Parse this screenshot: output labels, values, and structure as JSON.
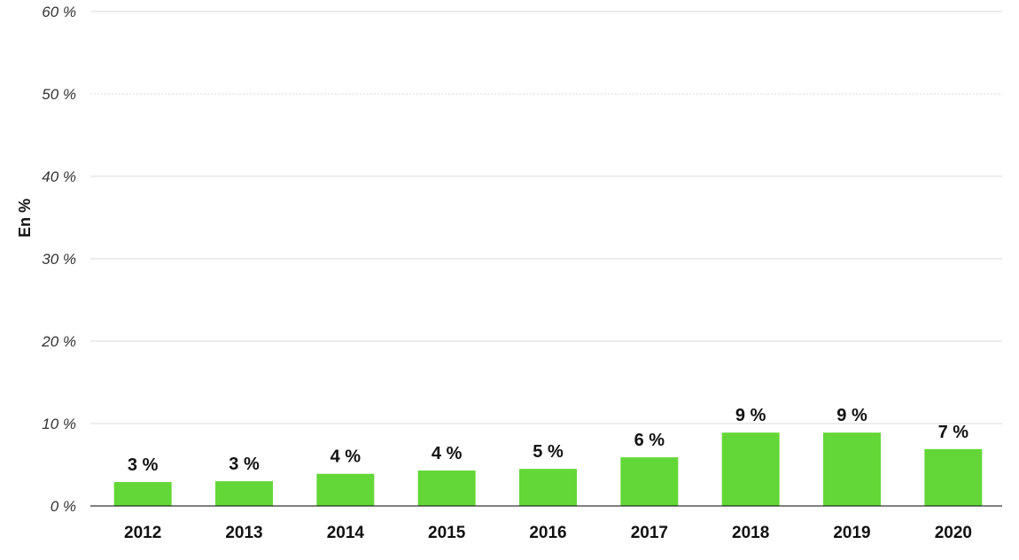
{
  "chart_data": {
    "type": "bar",
    "title": "",
    "xlabel": "",
    "ylabel": "En %",
    "categories": [
      "2012",
      "2013",
      "2014",
      "2015",
      "2016",
      "2017",
      "2018",
      "2019",
      "2020"
    ],
    "values": [
      2.9,
      3.0,
      3.9,
      4.3,
      4.5,
      5.9,
      8.9,
      8.9,
      6.9
    ],
    "data_labels": [
      "3 %",
      "3 %",
      "4 %",
      "4 %",
      "5 %",
      "6 %",
      "9 %",
      "9 %",
      "7 %"
    ],
    "ylim": [
      0,
      60
    ],
    "yticks": [
      0,
      10,
      20,
      30,
      40,
      50,
      60
    ],
    "ytick_labels": [
      "0 %",
      "10 %",
      "20 %",
      "30 %",
      "40 %",
      "50 %",
      "60 %"
    ],
    "grid": true,
    "legend": "none",
    "colors": {
      "bar": "#64d738",
      "grid": "#d9d9d9",
      "axis": "#000000"
    }
  }
}
